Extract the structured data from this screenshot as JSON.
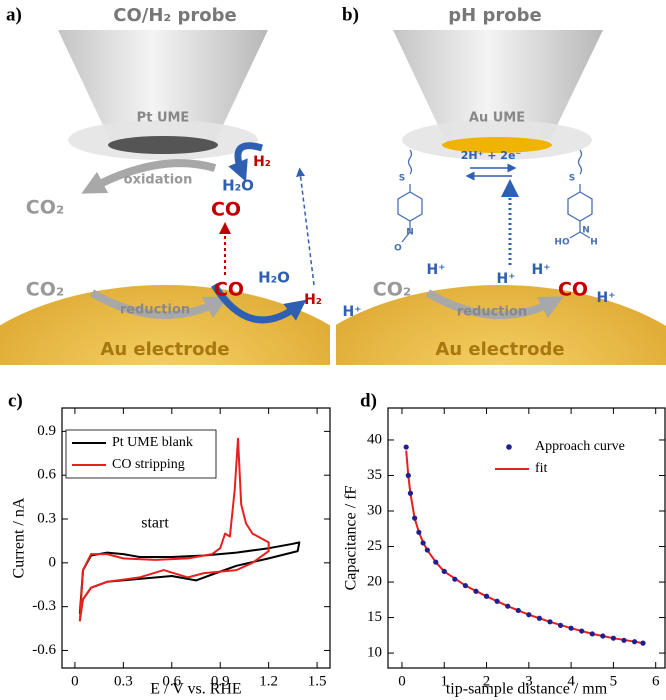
{
  "panels": [
    {
      "label": "a)",
      "title": "CO/H₂ probe",
      "probe": "Pt UME",
      "electrode": "Au electrode",
      "texts": [
        "oxidation",
        "CO₂",
        "CO",
        "H₂",
        "H₂O",
        "CO₂",
        "reduction",
        "CO",
        "H₂O",
        "H₂"
      ]
    },
    {
      "label": "b)",
      "title": "pH probe",
      "probe": "Au UME",
      "electrode": "Au electrode",
      "reaction": "2H⁺ + 2e⁻",
      "texts": [
        "CO₂",
        "reduction",
        "CO",
        "H⁺",
        "H⁺",
        "H⁺",
        "H⁺",
        "H⁺"
      ],
      "molecule_labels": [
        "S",
        "S",
        "O",
        "N",
        "HO",
        "N",
        "H"
      ]
    }
  ],
  "chart_data": [
    {
      "type": "line",
      "label": "c)",
      "xlabel": "E / V vs. RHE",
      "ylabel": "Current / nA",
      "xlim": [
        -0.08,
        1.58
      ],
      "ylim": [
        -0.72,
        1.06
      ],
      "xticks": [
        0,
        0.3,
        0.6,
        0.9,
        1.2,
        1.5
      ],
      "yticks": [
        -0.6,
        -0.3,
        0,
        0.3,
        0.6,
        0.9
      ],
      "annotations": [
        {
          "text": "start"
        }
      ],
      "series": [
        {
          "name": "Pt UME blank",
          "color": "#000000",
          "x": [
            0.03,
            0.05,
            0.1,
            0.2,
            0.3,
            0.4,
            0.6,
            0.8,
            1.0,
            1.2,
            1.35,
            1.39,
            1.38,
            1.2,
            1.0,
            0.85,
            0.75,
            0.6,
            0.4,
            0.2,
            0.1,
            0.05,
            0.03
          ],
          "values": [
            -0.35,
            -0.05,
            0.05,
            0.07,
            0.06,
            0.04,
            0.04,
            0.05,
            0.07,
            0.1,
            0.13,
            0.14,
            0.08,
            0.03,
            -0.02,
            -0.08,
            -0.12,
            -0.09,
            -0.11,
            -0.13,
            -0.17,
            -0.25,
            -0.35
          ]
        },
        {
          "name": "CO stripping",
          "color": "#e8201c",
          "x": [
            0.03,
            0.05,
            0.1,
            0.2,
            0.3,
            0.5,
            0.7,
            0.85,
            0.9,
            0.93,
            0.96,
            0.99,
            1.01,
            1.03,
            1.06,
            1.1,
            1.15,
            1.2,
            1.2,
            1.1,
            1.0,
            0.9,
            0.8,
            0.7,
            0.55,
            0.4,
            0.2,
            0.1,
            0.05,
            0.03
          ],
          "values": [
            -0.4,
            -0.05,
            0.06,
            0.06,
            0.03,
            0.02,
            0.03,
            0.06,
            0.1,
            0.2,
            0.18,
            0.5,
            0.85,
            0.4,
            0.27,
            0.2,
            0.17,
            0.14,
            0.08,
            0.0,
            -0.05,
            -0.06,
            -0.07,
            -0.1,
            -0.05,
            -0.1,
            -0.13,
            -0.17,
            -0.25,
            -0.4
          ]
        }
      ]
    },
    {
      "type": "scatter",
      "label": "d)",
      "xlabel": "tip-sample distance / mm",
      "ylabel": "Capacitance / fF",
      "xlim": [
        -0.33,
        6.22
      ],
      "ylim": [
        7.9,
        44.5
      ],
      "xticks": [
        0,
        1,
        2,
        3,
        4,
        5,
        6
      ],
      "yticks": [
        10,
        15,
        20,
        25,
        30,
        35,
        40
      ],
      "series": [
        {
          "name": "Approach curve",
          "color": "#1f1f8f",
          "style": "markers",
          "x": [
            0.1,
            0.15,
            0.2,
            0.3,
            0.4,
            0.5,
            0.6,
            0.8,
            1,
            1.25,
            1.5,
            1.75,
            2,
            2.25,
            2.5,
            2.75,
            3,
            3.25,
            3.5,
            3.75,
            4,
            4.25,
            4.5,
            4.75,
            5,
            5.25,
            5.5,
            5.7
          ],
          "values": [
            39,
            35,
            32.5,
            29,
            27,
            25.5,
            24.5,
            22.8,
            21.5,
            20.4,
            19.5,
            18.7,
            18,
            17.3,
            16.6,
            16,
            15.4,
            14.9,
            14.4,
            13.9,
            13.5,
            13.1,
            12.7,
            12.4,
            12.1,
            11.8,
            11.6,
            11.4
          ]
        },
        {
          "name": "fit",
          "color": "#e8201c",
          "style": "line",
          "x": [
            0.1,
            0.15,
            0.2,
            0.3,
            0.4,
            0.5,
            0.6,
            0.8,
            1,
            1.5,
            2,
            2.5,
            3,
            3.5,
            4,
            4.5,
            5,
            5.5,
            5.7
          ],
          "values": [
            38.5,
            35,
            32.5,
            29,
            27,
            25.6,
            24.5,
            22.8,
            21.5,
            19.5,
            18,
            16.6,
            15.4,
            14.4,
            13.5,
            12.7,
            12.1,
            11.6,
            11.4
          ]
        }
      ]
    }
  ]
}
